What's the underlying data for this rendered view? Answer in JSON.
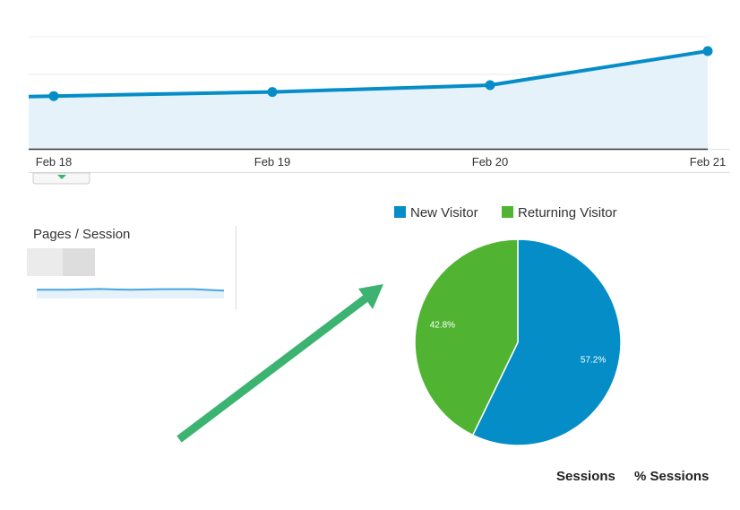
{
  "chart_data": [
    {
      "type": "area",
      "categories": [
        "Feb 18",
        "Feb 19",
        "Feb 20",
        "Feb 21"
      ],
      "series": [
        {
          "values": [
            1.78,
            1.92,
            2.15,
            3.3
          ]
        }
      ],
      "ylim": [
        0,
        4.6
      ],
      "grid": true,
      "colors": {
        "line": "#058dc7",
        "fill": "#e6f2fa",
        "grid": "#e8e8e8",
        "axis": "#333333"
      }
    },
    {
      "type": "pie",
      "legend_position": "top",
      "slices": [
        {
          "label": "New Visitor",
          "value": 57.2,
          "value_label": "57.2%",
          "color": "#058dc7"
        },
        {
          "label": "Returning Visitor",
          "value": 42.8,
          "value_label": "42.8%",
          "color": "#50b432"
        }
      ]
    }
  ],
  "sparkline": {
    "title": "Pages / Session",
    "values": [
      2.1,
      2.1,
      2.3,
      2.1,
      2.25,
      2.25,
      1.9
    ],
    "ylim": [
      0,
      8
    ],
    "color": "#4aa4e0",
    "fill": "#e6f2fa"
  },
  "table_header": {
    "sessions": "Sessions",
    "pct_sessions": "% Sessions"
  },
  "annotation": {
    "arrow_color": "#3cb371"
  }
}
